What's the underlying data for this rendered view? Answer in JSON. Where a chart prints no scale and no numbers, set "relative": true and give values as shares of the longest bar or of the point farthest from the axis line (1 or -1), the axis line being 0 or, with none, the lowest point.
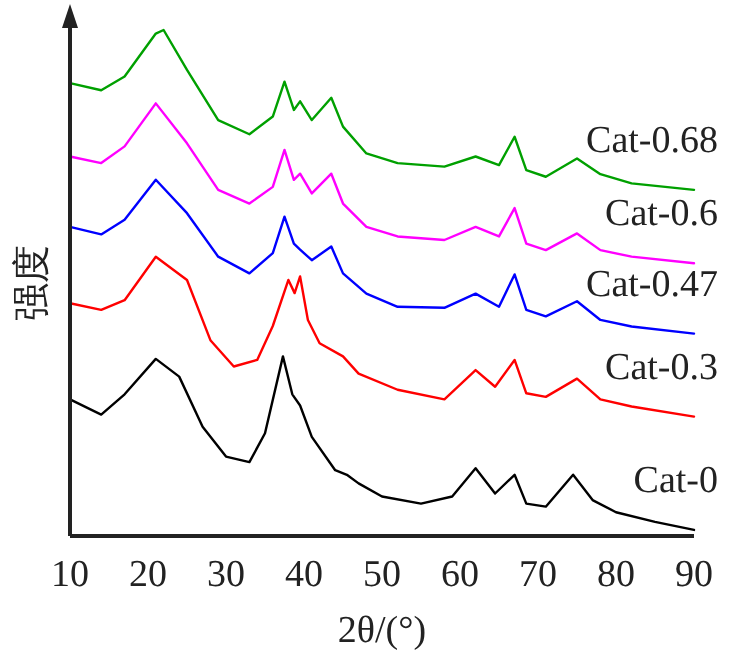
{
  "chart_data": {
    "type": "line",
    "relative": true,
    "xlabel": "2θ/(°)",
    "ylabel": "强度",
    "xlim": [
      10,
      90
    ],
    "xticks": [
      10,
      20,
      30,
      40,
      50,
      60,
      70,
      80,
      90
    ],
    "grid": false,
    "legend": false,
    "marker": "none",
    "line_style": "solid",
    "series": [
      {
        "name": "Cat-0",
        "color": "#000000",
        "x": [
          10,
          14,
          17,
          21,
          24,
          27,
          30,
          33,
          35,
          37.3,
          38.5,
          39.5,
          41,
          44,
          45.5,
          47,
          50,
          55,
          59,
          62,
          64.5,
          67,
          68.5,
          71,
          74.5,
          77,
          80,
          85,
          90
        ],
        "values": [
          0.27,
          0.24,
          0.28,
          0.35,
          0.315,
          0.216,
          0.157,
          0.146,
          0.203,
          0.355,
          0.28,
          0.258,
          0.196,
          0.13,
          0.121,
          0.104,
          0.078,
          0.064,
          0.078,
          0.134,
          0.084,
          0.121,
          0.064,
          0.058,
          0.121,
          0.071,
          0.047,
          0.028,
          0.012
        ]
      },
      {
        "name": "Cat-0.3",
        "color": "#ff0000",
        "x": [
          10,
          14,
          17,
          21,
          25,
          28,
          31,
          34,
          36,
          38,
          38.8,
          39.5,
          40.5,
          42,
          45,
          47,
          52,
          58,
          62,
          64.5,
          67,
          68.5,
          71,
          75,
          78,
          82,
          90
        ],
        "values": [
          0.46,
          0.447,
          0.466,
          0.552,
          0.506,
          0.387,
          0.335,
          0.348,
          0.415,
          0.506,
          0.48,
          0.513,
          0.427,
          0.381,
          0.355,
          0.321,
          0.289,
          0.27,
          0.328,
          0.295,
          0.348,
          0.282,
          0.275,
          0.311,
          0.27,
          0.256,
          0.236
        ]
      },
      {
        "name": "Cat-0.47",
        "color": "#0000ff",
        "x": [
          10,
          14,
          17,
          21,
          25,
          29,
          33,
          36,
          37.5,
          38.7,
          39.5,
          41,
          43.5,
          45,
          48,
          52,
          58,
          62,
          65,
          67,
          68.5,
          71,
          75,
          78,
          82,
          90
        ],
        "values": [
          0.611,
          0.596,
          0.625,
          0.704,
          0.638,
          0.552,
          0.519,
          0.559,
          0.631,
          0.578,
          0.566,
          0.545,
          0.572,
          0.519,
          0.479,
          0.453,
          0.451,
          0.479,
          0.453,
          0.517,
          0.447,
          0.434,
          0.464,
          0.427,
          0.414,
          0.4
        ]
      },
      {
        "name": "Cat-0.6",
        "color": "#ff00ff",
        "x": [
          10,
          14,
          17,
          21,
          25,
          29,
          33,
          36,
          37.5,
          38.7,
          39.5,
          41,
          43.5,
          45,
          48,
          52,
          58,
          62,
          65,
          67,
          68.5,
          71,
          75,
          78,
          82,
          90
        ],
        "values": [
          0.75,
          0.737,
          0.77,
          0.855,
          0.776,
          0.684,
          0.657,
          0.69,
          0.763,
          0.704,
          0.716,
          0.677,
          0.716,
          0.657,
          0.611,
          0.592,
          0.585,
          0.611,
          0.592,
          0.648,
          0.578,
          0.565,
          0.598,
          0.565,
          0.552,
          0.539
        ]
      },
      {
        "name": "Cat-0.68",
        "color": "#00a000",
        "x": [
          10,
          14,
          17,
          21,
          22,
          25,
          29,
          33,
          36,
          37.5,
          38.7,
          39.5,
          41,
          43.5,
          45,
          48,
          52,
          58,
          62,
          65,
          67,
          68.5,
          71,
          75,
          78,
          82,
          90
        ],
        "values": [
          0.895,
          0.881,
          0.908,
          0.993,
          1.0,
          0.921,
          0.822,
          0.794,
          0.829,
          0.898,
          0.842,
          0.859,
          0.822,
          0.866,
          0.809,
          0.756,
          0.737,
          0.73,
          0.75,
          0.733,
          0.789,
          0.723,
          0.71,
          0.746,
          0.715,
          0.697,
          0.684
        ]
      }
    ]
  }
}
